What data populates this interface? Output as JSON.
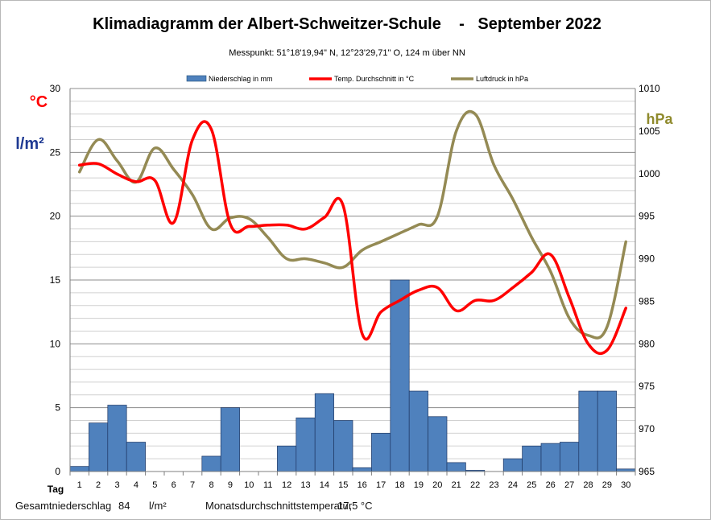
{
  "title": "Klimadiagramm der Albert-Schweitzer-Schule    -   September 2022",
  "subtitle": "Messpunkt:  51°18'19,94\" N,  12°23'29,71\" O,  124 m über NN",
  "axis_units": {
    "celsius": "°C",
    "rain": "l/m²",
    "pressure": "hPa"
  },
  "x_axis_label": "Tag",
  "legend": {
    "rain": "Niederschlag in mm",
    "temp": "Temp. Durchschnitt in °C",
    "pressure": "Luftdruck in hPa"
  },
  "footer": {
    "total_label": "Gesamtniederschlag",
    "total_value": "84",
    "total_unit": "l/m²",
    "avg_label": "Monatsdurchschnittstemperatur",
    "avg_value": "17,5 °C"
  },
  "colors": {
    "rain": "#4f81bd",
    "temp": "#ff0000",
    "pressure": "#948a54",
    "celsius_unit": "#ff0000",
    "rain_unit": "#1f3a93",
    "pressure_unit": "#8f8a2c"
  },
  "chart_data": {
    "type": "bar+line",
    "days": [
      1,
      2,
      3,
      4,
      5,
      6,
      7,
      8,
      9,
      10,
      11,
      12,
      13,
      14,
      15,
      16,
      17,
      18,
      19,
      20,
      21,
      22,
      23,
      24,
      25,
      26,
      27,
      28,
      29,
      30
    ],
    "left_axis": {
      "ylim": [
        0,
        30
      ],
      "ticks": [
        0,
        5,
        10,
        15,
        20,
        25,
        30
      ]
    },
    "right_axis": {
      "ylim": [
        965,
        1010
      ],
      "ticks": [
        965,
        970,
        975,
        980,
        985,
        990,
        995,
        1000,
        1005,
        1010
      ]
    },
    "series": [
      {
        "name": "Niederschlag in mm",
        "type": "bar",
        "axis": "left",
        "values": [
          0.4,
          3.8,
          5.2,
          2.3,
          0,
          0,
          0,
          1.2,
          5.0,
          0,
          0,
          2.0,
          4.2,
          6.1,
          4.0,
          0.3,
          3.0,
          15.0,
          6.3,
          4.3,
          0.7,
          0.1,
          0,
          1.0,
          2.0,
          2.2,
          2.3,
          6.3,
          6.3,
          0.2
        ]
      },
      {
        "name": "Temp. Durchschnitt in °C",
        "type": "line",
        "axis": "left",
        "values": [
          24.0,
          24.1,
          23.3,
          22.7,
          22.8,
          19.5,
          26.0,
          26.8,
          19.4,
          19.2,
          19.3,
          19.3,
          19.0,
          19.9,
          20.8,
          10.8,
          12.5,
          13.4,
          14.2,
          14.4,
          12.6,
          13.4,
          13.4,
          14.4,
          15.6,
          17.0,
          13.6,
          10.0,
          9.5,
          12.8
        ]
      },
      {
        "name": "Luftdruck in hPa",
        "type": "line",
        "axis": "right",
        "values": [
          1000.2,
          1004.0,
          1001.5,
          999.0,
          1003.0,
          1000.5,
          997.5,
          993.5,
          994.8,
          994.7,
          992.5,
          990.0,
          990.0,
          989.5,
          989.0,
          991.0,
          992.0,
          993.0,
          994.0,
          995.0,
          1005.0,
          1007.0,
          1001.0,
          997.0,
          992.5,
          988.5,
          983.0,
          981.0,
          982.0,
          992.0
        ]
      }
    ]
  }
}
